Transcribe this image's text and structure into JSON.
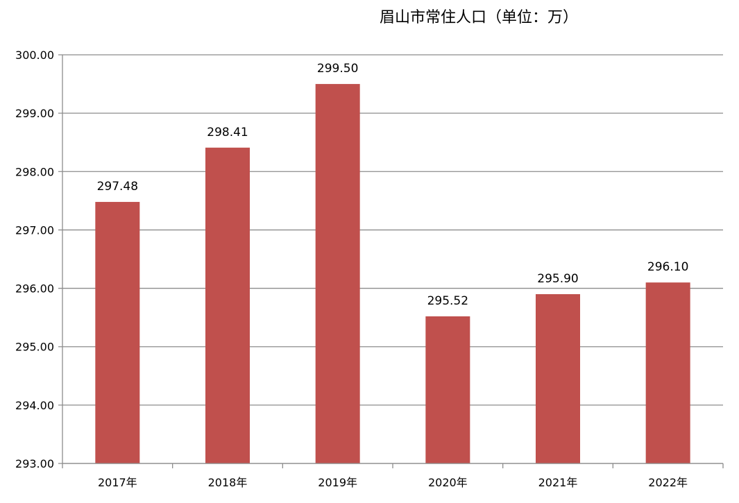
{
  "chart_data": {
    "type": "bar",
    "title": "眉山市常住人口（单位：万）",
    "categories": [
      "2017年",
      "2018年",
      "2019年",
      "2020年",
      "2021年",
      "2022年"
    ],
    "values": [
      297.48,
      298.41,
      299.5,
      295.52,
      295.9,
      296.1
    ],
    "data_labels": [
      "297.48",
      "298.41",
      "299.50",
      "295.52",
      "295.90",
      "296.10"
    ],
    "ylim": [
      293,
      300
    ],
    "yticks": [
      "293.00",
      "294.00",
      "295.00",
      "296.00",
      "297.00",
      "298.00",
      "299.00",
      "300.00"
    ],
    "grid": true,
    "legend": "none",
    "bar_color": "#C0504D",
    "grid_color": "#8C8C8C"
  }
}
